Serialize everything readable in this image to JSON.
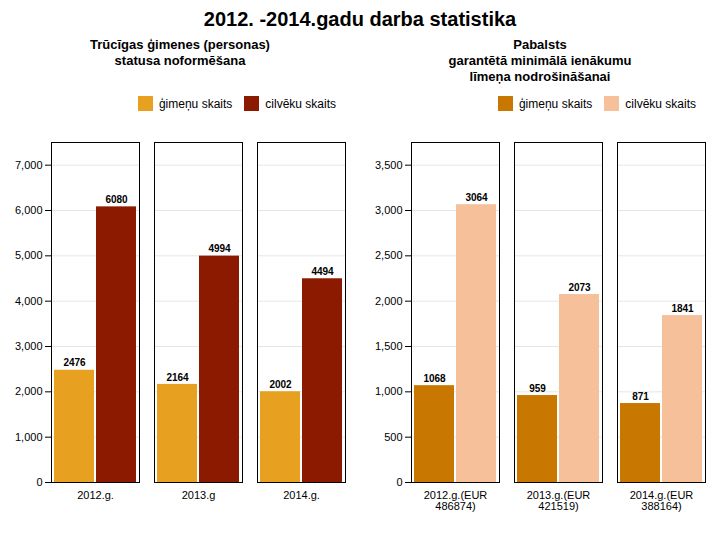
{
  "title": "2012. -2014.gadu darba statistika",
  "chart_data": [
    {
      "type": "bar",
      "title": "Trūcīgas ģimenes (personas)\nstatusa noformēšana",
      "categories": [
        "2012.g.",
        "2013.g",
        "2014.g."
      ],
      "series": [
        {
          "name": "ģimeņu skaits",
          "color": "#e8a020",
          "values": [
            2476,
            2164,
            2002
          ]
        },
        {
          "name": "cilvēku skaits",
          "color": "#8b1a00",
          "values": [
            6080,
            4994,
            4494
          ]
        }
      ],
      "ylim": [
        0,
        7500
      ],
      "yticks": [
        0,
        1000,
        2000,
        3000,
        4000,
        5000,
        6000,
        7000
      ],
      "grid": true,
      "legend": "upper right",
      "data_labels": true
    },
    {
      "type": "bar",
      "title": "Pabalsts\ngarantētā minimālā ienākumu\nlīmeņa nodrošināšanai",
      "categories": [
        "2012.g.(EUR\n486874)",
        "2013.g.(EUR\n421519)",
        "2014.g.(EUR\n388164)"
      ],
      "series": [
        {
          "name": "ģimeņu skaits",
          "color": "#c87800",
          "values": [
            1068,
            959,
            871
          ]
        },
        {
          "name": "cilvēku skaits",
          "color": "#f5c09a",
          "values": [
            3064,
            2073,
            1841
          ]
        }
      ],
      "ylim": [
        0,
        3750
      ],
      "yticks": [
        0,
        500,
        1000,
        1500,
        2000,
        2500,
        3000,
        3500
      ],
      "grid": true,
      "legend": "upper right",
      "data_labels": true
    }
  ]
}
